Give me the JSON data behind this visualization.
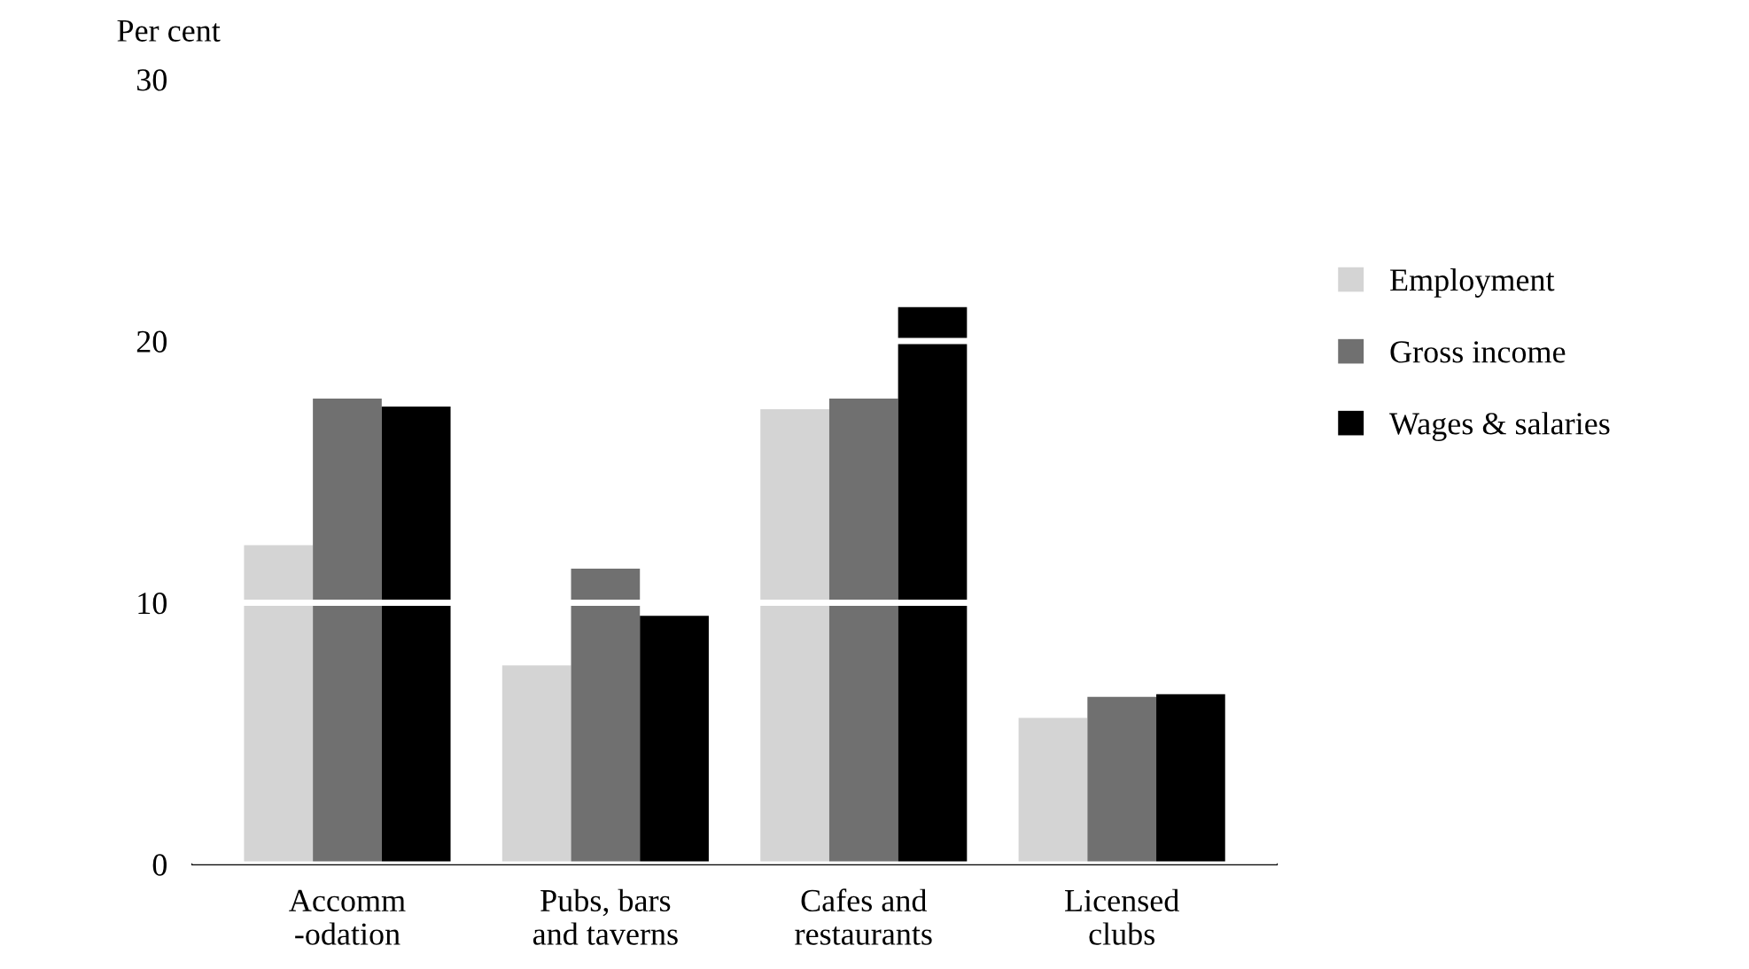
{
  "chart_data": {
    "type": "bar",
    "ylabel": "Per cent",
    "categories": [
      "Accomm\n-odation",
      "Pubs, bars\nand taverns",
      "Cafes and\nrestaurants",
      "Licensed\nclubs"
    ],
    "series": [
      {
        "name": "Employment",
        "color": "#d4d4d4",
        "values": [
          12.2,
          7.6,
          17.4,
          5.6
        ]
      },
      {
        "name": "Gross income",
        "color": "#707070",
        "values": [
          17.8,
          11.3,
          17.8,
          6.4
        ]
      },
      {
        "name": "Wages & salaries",
        "color": "#000000",
        "values": [
          17.5,
          9.5,
          21.3,
          6.5
        ]
      }
    ],
    "ylim": [
      0,
      30
    ],
    "yticks": [
      0,
      10,
      20,
      30
    ],
    "grid": "y",
    "legend": "right"
  }
}
